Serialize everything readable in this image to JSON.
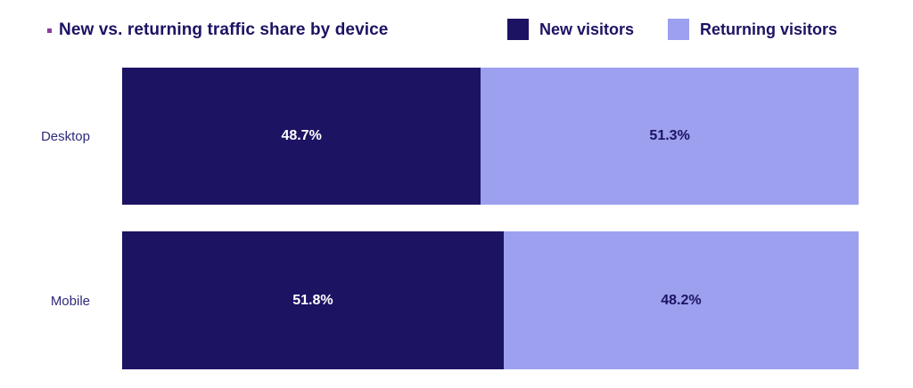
{
  "colors": {
    "new": "#1c1363",
    "returning": "#9ca0ee",
    "bullet": "#8b3a9e",
    "text": "#1c1363"
  },
  "title": "New vs. returning traffic share by device",
  "legend": {
    "items": [
      {
        "label": "New visitors",
        "color": "#1c1363"
      },
      {
        "label": "Returning visitors",
        "color": "#9ca0ee"
      }
    ]
  },
  "rows": [
    {
      "label": "Desktop",
      "new": 48.7,
      "returning": 51.3,
      "new_label": "48.7%",
      "returning_label": "51.3%"
    },
    {
      "label": "Mobile",
      "new": 51.8,
      "returning": 48.2,
      "new_label": "51.8%",
      "returning_label": "48.2%"
    }
  ],
  "chart_data": {
    "type": "bar",
    "orientation": "horizontal",
    "stacked": true,
    "normalized": true,
    "title": "New vs. returning traffic share by device",
    "categories": [
      "Desktop",
      "Mobile"
    ],
    "series": [
      {
        "name": "New visitors",
        "color": "#1c1363",
        "values": [
          48.7,
          51.8
        ]
      },
      {
        "name": "Returning visitors",
        "color": "#9ca0ee",
        "values": [
          51.3,
          48.2
        ]
      }
    ],
    "data_labels": [
      [
        "48.7%",
        "51.3%"
      ],
      [
        "51.8%",
        "48.2%"
      ]
    ],
    "xlabel": "",
    "ylabel": "",
    "xlim": [
      0,
      100
    ],
    "unit": "%",
    "grid": false,
    "legend_position": "top-right"
  }
}
